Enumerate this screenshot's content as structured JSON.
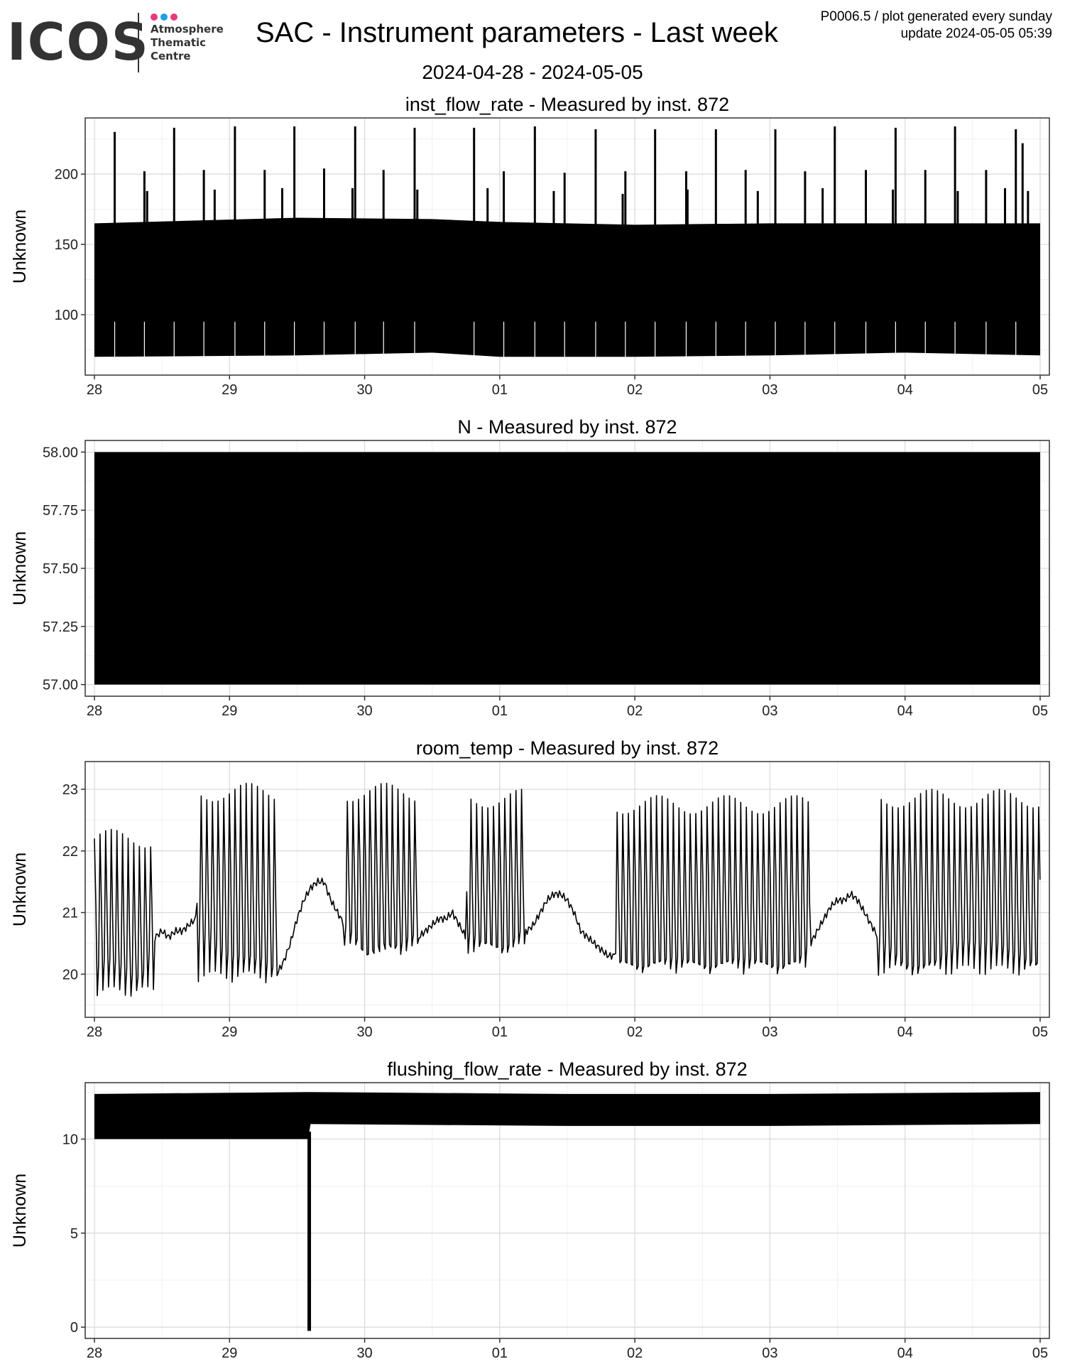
{
  "header": {
    "logo_word": "ICOS",
    "logo_lines": [
      "Atmosphere",
      "Thematic",
      "Centre"
    ],
    "logo_dot_colors": [
      "#e63b7a",
      "#1ea0e6",
      "#e63b7a"
    ],
    "title": "SAC - Instrument parameters - Last week",
    "date_range": "2024-04-28 - 2024-05-05",
    "meta_line1": "P0006.5 / plot generated every sunday",
    "meta_line2": "update  2024-05-05 05:39"
  },
  "chart_data": [
    {
      "type": "line",
      "title": "inst_flow_rate - Measured by inst. 872",
      "ylabel": "Unknown",
      "x_ticks": [
        "28",
        "29",
        "30",
        "01",
        "02",
        "03",
        "04",
        "05"
      ],
      "xlim": [
        "2024-04-28",
        "2024-05-05"
      ],
      "ylim": [
        57,
        240
      ],
      "y_ticks": [
        100,
        150,
        200
      ],
      "band": [
        {
          "x": 0.0,
          "low": 70,
          "high": 165
        },
        {
          "x": 1.5,
          "low": 71,
          "high": 169
        },
        {
          "x": 2.5,
          "low": 73,
          "high": 168
        },
        {
          "x": 3.0,
          "low": 70,
          "high": 166
        },
        {
          "x": 4.0,
          "low": 70,
          "high": 164
        },
        {
          "x": 5.0,
          "low": 71,
          "high": 165
        },
        {
          "x": 6.0,
          "low": 73,
          "high": 165
        },
        {
          "x": 7.0,
          "low": 71,
          "high": 165
        }
      ],
      "spikes": [
        {
          "x": 0.15,
          "y": 230
        },
        {
          "x": 0.37,
          "y": 202
        },
        {
          "x": 0.39,
          "y": 188
        },
        {
          "x": 0.59,
          "y": 233
        },
        {
          "x": 0.81,
          "y": 203
        },
        {
          "x": 0.89,
          "y": 189
        },
        {
          "x": 1.04,
          "y": 234
        },
        {
          "x": 1.26,
          "y": 203
        },
        {
          "x": 1.39,
          "y": 190
        },
        {
          "x": 1.48,
          "y": 234
        },
        {
          "x": 1.7,
          "y": 204
        },
        {
          "x": 1.91,
          "y": 190
        },
        {
          "x": 1.93,
          "y": 234
        },
        {
          "x": 2.14,
          "y": 203
        },
        {
          "x": 2.37,
          "y": 233
        },
        {
          "x": 2.39,
          "y": 189
        },
        {
          "x": 2.81,
          "y": 233
        },
        {
          "x": 2.91,
          "y": 190
        },
        {
          "x": 3.03,
          "y": 202
        },
        {
          "x": 3.26,
          "y": 234
        },
        {
          "x": 3.4,
          "y": 188
        },
        {
          "x": 3.48,
          "y": 201
        },
        {
          "x": 3.71,
          "y": 232
        },
        {
          "x": 3.91,
          "y": 186
        },
        {
          "x": 3.93,
          "y": 202
        },
        {
          "x": 4.15,
          "y": 232
        },
        {
          "x": 4.38,
          "y": 202
        },
        {
          "x": 4.39,
          "y": 189
        },
        {
          "x": 4.6,
          "y": 232
        },
        {
          "x": 4.82,
          "y": 203
        },
        {
          "x": 4.91,
          "y": 188
        },
        {
          "x": 5.04,
          "y": 232
        },
        {
          "x": 5.26,
          "y": 202
        },
        {
          "x": 5.39,
          "y": 190
        },
        {
          "x": 5.48,
          "y": 234
        },
        {
          "x": 5.71,
          "y": 203
        },
        {
          "x": 5.91,
          "y": 189
        },
        {
          "x": 5.93,
          "y": 233
        },
        {
          "x": 6.15,
          "y": 203
        },
        {
          "x": 6.37,
          "y": 234
        },
        {
          "x": 6.39,
          "y": 188
        },
        {
          "x": 6.6,
          "y": 203
        },
        {
          "x": 6.74,
          "y": 190
        },
        {
          "x": 6.82,
          "y": 232
        },
        {
          "x": 6.87,
          "y": 222
        },
        {
          "x": 6.91,
          "y": 188
        }
      ],
      "dips": [
        0.15,
        0.37,
        0.59,
        0.81,
        1.04,
        1.26,
        1.48,
        1.7,
        1.93,
        2.14,
        2.37,
        2.81,
        3.03,
        3.26,
        3.48,
        3.71,
        3.93,
        4.15,
        4.38,
        4.6,
        4.82,
        5.04,
        5.26,
        5.48,
        5.71,
        5.93,
        6.15,
        6.37,
        6.6,
        6.82
      ]
    },
    {
      "type": "area",
      "title": "N - Measured by inst. 872",
      "ylabel": "Unknown",
      "x_ticks": [
        "28",
        "29",
        "30",
        "01",
        "02",
        "03",
        "04",
        "05"
      ],
      "xlim": [
        "2024-04-28",
        "2024-05-05"
      ],
      "ylim": [
        56.95,
        58.05
      ],
      "y_ticks": [
        "57.00",
        "57.25",
        "57.50",
        "57.75",
        "58.00"
      ],
      "band": [
        {
          "x": 0.0,
          "low": 57,
          "high": 58
        },
        {
          "x": 7.0,
          "low": 57,
          "high": 58
        }
      ]
    },
    {
      "type": "line",
      "title": "room_temp - Measured by inst. 872",
      "ylabel": "Unknown",
      "x_ticks": [
        "28",
        "29",
        "30",
        "01",
        "02",
        "03",
        "04",
        "05"
      ],
      "xlim": [
        "2024-04-28",
        "2024-05-05"
      ],
      "ylim": [
        19.3,
        23.45
      ],
      "y_ticks": [
        20,
        21,
        22,
        23
      ],
      "series_x": [
        0,
        0.05,
        0.1,
        0.15,
        0.2,
        0.25,
        0.3,
        0.35,
        0.4,
        0.45,
        0.5,
        0.55,
        0.6,
        0.65,
        0.7,
        0.75,
        0.8,
        0.85,
        0.9,
        0.95,
        1.0,
        1.05,
        1.1,
        1.15,
        1.2,
        1.25,
        1.3,
        1.35,
        1.4,
        1.45,
        1.5,
        1.55,
        1.6,
        1.65,
        1.7,
        1.75,
        1.8,
        1.85,
        1.9,
        1.95,
        2.0,
        2.05,
        2.1,
        2.15,
        2.2,
        2.25,
        2.3,
        2.35,
        2.4,
        2.45,
        2.5,
        2.55,
        2.6,
        2.65,
        2.7,
        2.75,
        2.8,
        2.85,
        2.9,
        2.95,
        3.0,
        3.05,
        3.1,
        3.15,
        3.2,
        3.25,
        3.3,
        3.35,
        3.4,
        3.45,
        3.5,
        3.55,
        3.6,
        3.65,
        3.7,
        3.75,
        3.8,
        3.85,
        3.9,
        3.95,
        4.0,
        4.05,
        4.1,
        4.15,
        4.2,
        4.25,
        4.3,
        4.35,
        4.4,
        4.45,
        4.5,
        4.55,
        4.6,
        4.65,
        4.7,
        4.75,
        4.8,
        4.85,
        4.9,
        4.95,
        5.0,
        5.05,
        5.1,
        5.15,
        5.2,
        5.25,
        5.3,
        5.35,
        5.4,
        5.45,
        5.5,
        5.55,
        5.6,
        5.65,
        5.7,
        5.75,
        5.8,
        5.85,
        5.9,
        5.95,
        6.0,
        6.05,
        6.1,
        6.15,
        6.2,
        6.25,
        6.3,
        6.35,
        6.4,
        6.45,
        6.5,
        6.55,
        6.6,
        6.65,
        6.7,
        6.75,
        6.8,
        6.85,
        6.9,
        6.95,
        7.0
      ],
      "base": [
        20.1,
        20.3,
        20.3,
        20.2,
        20.1,
        20.0,
        19.9,
        19.9,
        20.4,
        20.6,
        20.7,
        20.6,
        20.7,
        20.7,
        20.8,
        20.9,
        20.9,
        20.8,
        20.6,
        20.5,
        20.4,
        20.4,
        20.3,
        20.3,
        20.2,
        20.2,
        20.1,
        20.0,
        20.2,
        20.5,
        20.9,
        21.2,
        21.4,
        21.5,
        21.5,
        21.2,
        21.0,
        20.8,
        20.7,
        20.6,
        20.4,
        20.4,
        20.4,
        20.4,
        20.4,
        20.4,
        20.5,
        20.6,
        20.6,
        20.7,
        20.8,
        20.9,
        20.9,
        21.0,
        20.8,
        20.6,
        20.6,
        20.5,
        20.5,
        20.5,
        20.5,
        20.5,
        20.6,
        20.7,
        20.7,
        20.8,
        21.0,
        21.2,
        21.3,
        21.3,
        21.2,
        21.0,
        20.7,
        20.6,
        20.5,
        20.4,
        20.3,
        20.3,
        20.2,
        20.2,
        20.2,
        20.2,
        20.2,
        20.2,
        20.2,
        20.2,
        20.2,
        20.2,
        20.2,
        20.2,
        20.2,
        20.2,
        20.2,
        20.2,
        20.2,
        20.2,
        20.2,
        20.2,
        20.2,
        20.2,
        20.2,
        20.2,
        20.2,
        20.2,
        20.2,
        20.3,
        20.5,
        20.7,
        20.9,
        21.1,
        21.2,
        21.2,
        21.3,
        21.2,
        21.0,
        20.8,
        20.6,
        20.5,
        20.4,
        20.3,
        20.2,
        20.2,
        20.2,
        20.2,
        20.2,
        20.2,
        20.3,
        20.4,
        20.5,
        20.6,
        20.6,
        20.6,
        20.6,
        20.6,
        20.5,
        20.4,
        20.3,
        20.3,
        20.2,
        20.2,
        20.2
      ],
      "osc_windows": [
        {
          "x0": 0.0,
          "x1": 0.45,
          "high": 22.2,
          "low": 19.6
        },
        {
          "x0": 0.75,
          "x1": 1.35,
          "high": 22.95,
          "low": 19.85
        },
        {
          "x0": 1.85,
          "x1": 2.4,
          "high": 22.95,
          "low": 20.3
        },
        {
          "x0": 2.75,
          "x1": 3.2,
          "high": 22.85,
          "low": 20.3
        },
        {
          "x0": 3.85,
          "x1": 5.3,
          "high": 22.75,
          "low": 20.0
        },
        {
          "x0": 5.8,
          "x1": 7.0,
          "high": 22.85,
          "low": 19.95
        }
      ]
    },
    {
      "type": "area",
      "title": "flushing_flow_rate - Measured by inst. 872",
      "ylabel": "Unknown",
      "x_ticks": [
        "28",
        "29",
        "30",
        "01",
        "02",
        "03",
        "04",
        "05"
      ],
      "xlim": [
        "2024-04-28",
        "2024-05-05"
      ],
      "ylim": [
        -0.6,
        13.0
      ],
      "y_ticks": [
        0,
        5,
        10
      ],
      "band": [
        {
          "x": 0.0,
          "low": 10.0,
          "high": 12.4
        },
        {
          "x": 1.58,
          "low": 10.0,
          "high": 12.5
        },
        {
          "x": 1.6,
          "low": 10.8,
          "high": 12.5
        },
        {
          "x": 3.5,
          "low": 10.7,
          "high": 12.4
        },
        {
          "x": 5.0,
          "low": 10.7,
          "high": 12.4
        },
        {
          "x": 7.0,
          "low": 10.8,
          "high": 12.5
        }
      ],
      "drop": {
        "x": 1.59,
        "y": -0.2
      }
    }
  ]
}
